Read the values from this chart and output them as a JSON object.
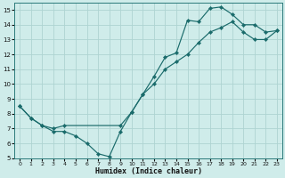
{
  "xlabel": "Humidex (Indice chaleur)",
  "bg_color": "#cfecea",
  "grid_color": "#aed4d2",
  "line_color": "#1a6b6b",
  "line1_x": [
    0,
    1,
    2,
    3,
    4,
    9,
    10,
    11,
    12,
    13,
    14,
    15,
    16,
    17,
    18,
    19,
    20,
    21,
    22,
    23
  ],
  "line1_y": [
    8.5,
    7.7,
    7.2,
    7.0,
    7.2,
    7.2,
    8.1,
    9.3,
    10.5,
    11.8,
    12.1,
    14.3,
    14.2,
    15.1,
    15.2,
    14.7,
    14.0,
    14.0,
    13.5,
    13.6
  ],
  "line2_x": [
    0,
    1,
    2,
    3,
    4,
    5,
    6,
    7,
    8,
    9,
    10,
    11,
    12,
    13,
    14,
    15,
    16,
    17,
    18,
    19,
    20,
    21,
    22,
    23
  ],
  "line2_y": [
    8.5,
    7.7,
    7.2,
    6.8,
    6.8,
    6.5,
    6.0,
    5.3,
    5.1,
    6.8,
    8.1,
    9.3,
    10.0,
    11.0,
    11.5,
    12.0,
    12.8,
    13.5,
    13.8,
    14.2,
    13.5,
    13.0,
    13.0,
    13.6
  ],
  "xlim": [
    -0.5,
    23.5
  ],
  "ylim": [
    5,
    15.5
  ],
  "yticks": [
    5,
    6,
    7,
    8,
    9,
    10,
    11,
    12,
    13,
    14,
    15
  ],
  "xticks": [
    0,
    1,
    2,
    3,
    4,
    5,
    6,
    7,
    8,
    9,
    10,
    11,
    12,
    13,
    14,
    15,
    16,
    17,
    18,
    19,
    20,
    21,
    22,
    23
  ]
}
